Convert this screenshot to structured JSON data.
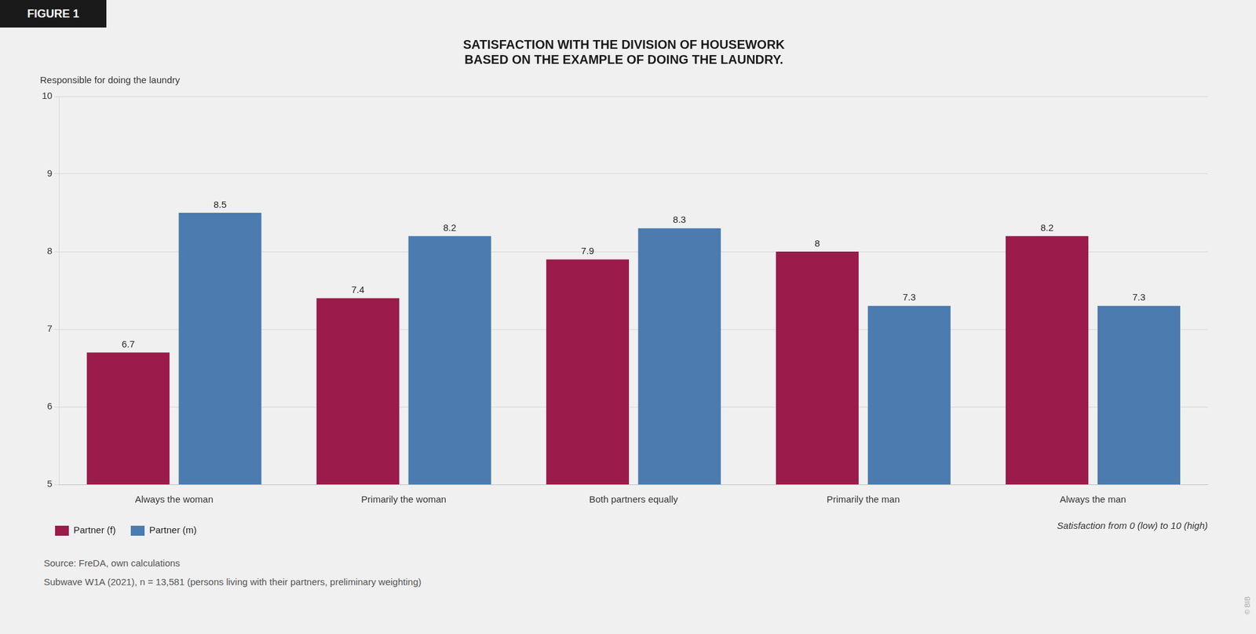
{
  "chart_data": {
    "type": "bar",
    "title": [
      "SATISFACTION WITH THE DIVISION OF HOUSEWORK",
      "BASED ON THE EXAMPLE OF DOING THE LAUNDRY."
    ],
    "subtitle": "Responsible for doing the laundry",
    "categories": [
      "Always the woman",
      "Primarily the woman",
      "Both partners equally",
      "Primarily the man",
      "Always the man"
    ],
    "series": [
      {
        "name": "Partner (f)",
        "color": "#9B1B4B",
        "values": [
          6.7,
          7.4,
          7.9,
          8.0,
          8.2
        ]
      },
      {
        "name": "Partner (m)",
        "color": "#4B7BAF",
        "values": [
          8.5,
          8.2,
          8.3,
          7.3,
          7.3
        ]
      }
    ],
    "ylim": [
      5,
      10
    ],
    "yticks": [
      5,
      6,
      7,
      8,
      9,
      10
    ],
    "grid": true,
    "legend": "lower left",
    "data_labels": true,
    "annotations": [
      "FIGURE 1",
      "Satisfaction from 0 (low) to 10 (high)",
      "Source: FreDA, own calculations",
      "Subwave W1A (2021), n = 13,581 (persons living with their partners, preliminary weighting)",
      "© BIB"
    ]
  }
}
